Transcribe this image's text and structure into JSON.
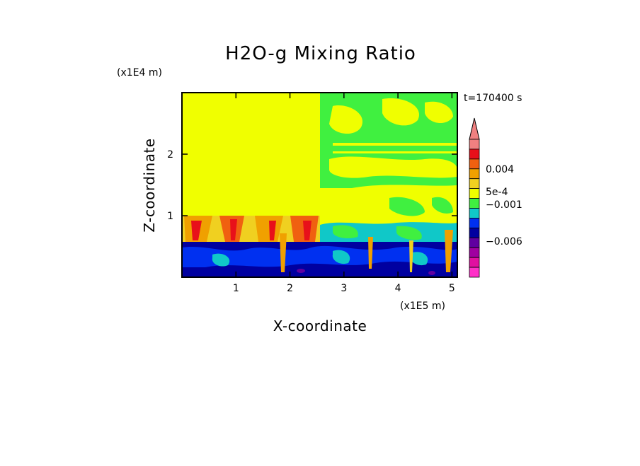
{
  "chart_data": {
    "type": "heatmap",
    "title": "H2O-g Mixing Ratio",
    "xlabel": "X-coordinate",
    "ylabel": "Z-coordinate",
    "x_unit": "(x1E5 m)",
    "y_unit": "(x1E4 m)",
    "time_label": "t=170400 s",
    "xlim": [
      0,
      5.1
    ],
    "ylim": [
      0,
      3.0
    ],
    "x_ticks": [
      1,
      2,
      3,
      4,
      5
    ],
    "y_ticks": [
      1,
      2
    ],
    "colorbar": {
      "tick_labels": [
        "0.004",
        "5e-4",
        "−0.001",
        "−0.006"
      ],
      "colors_top_to_bottom": [
        "#f08080",
        "#e8101a",
        "#f06010",
        "#f0a000",
        "#f0d020",
        "#f0ff00",
        "#40f040",
        "#10c8c8",
        "#0030f0",
        "#0000a0",
        "#6000a0",
        "#a000a0",
        "#e010a0",
        "#ff30c8"
      ]
    },
    "regions": [
      {
        "name": "upper-left",
        "x": [
          0,
          2.6
        ],
        "z": [
          1.0,
          3.0
        ],
        "value_color": "#f0ff00"
      },
      {
        "name": "upper-right",
        "x": [
          2.6,
          5.1
        ],
        "z": [
          0.9,
          3.0
        ],
        "value_color": "#40f040"
      },
      {
        "name": "mid-band",
        "x": [
          0,
          2.6
        ],
        "z": [
          0.6,
          1.0
        ],
        "value_color": "#f0a000"
      },
      {
        "name": "low-band",
        "x": [
          0,
          5.1
        ],
        "z": [
          0,
          0.6
        ],
        "value_color": "#0000a0"
      }
    ]
  }
}
